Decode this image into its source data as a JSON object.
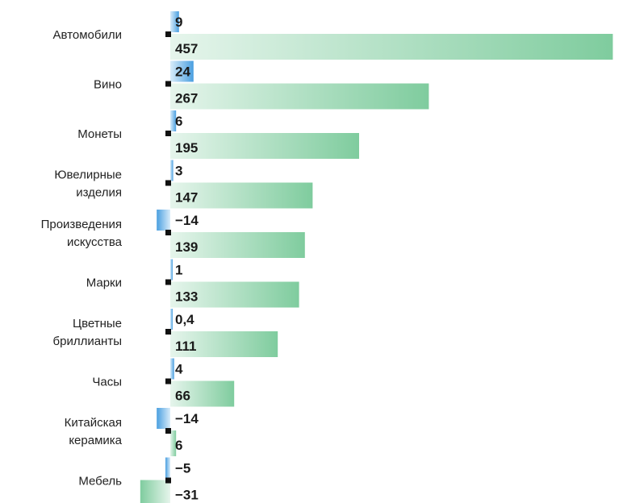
{
  "chart_data": {
    "type": "bar",
    "title": "",
    "xlabel": "",
    "ylabel": "",
    "categories": [
      "Автомобили",
      "Вино",
      "Монеты",
      "Ювелирные\nизделия",
      "Произведения\nискусства",
      "Марки",
      "Цветные\nбриллианты",
      "Часы",
      "Китайская\nкерамика",
      "Мебель"
    ],
    "series": [
      {
        "values": [
          9,
          24,
          6,
          3,
          -14,
          1,
          0.4,
          4,
          -14,
          -5
        ],
        "labels": [
          "9",
          "24",
          "6",
          "3",
          "−14",
          "1",
          "0,4",
          "4",
          "−14",
          "−5"
        ],
        "color": "#4a9fe0"
      },
      {
        "values": [
          457,
          267,
          195,
          147,
          139,
          133,
          111,
          66,
          6,
          -31
        ],
        "labels": [
          "457",
          "267",
          "195",
          "147",
          "139",
          "133",
          "111",
          "66",
          "6",
          "−31"
        ],
        "color": "#7fcc9e"
      }
    ],
    "xlim": [
      -31,
      457
    ],
    "grid": false,
    "legend": "none"
  },
  "colors": {
    "blue": "#4a9fe0",
    "blue_light": "#d8ecfa",
    "green": "#7fcc9e",
    "green_light": "#e6f5ec",
    "marker": "#111111"
  }
}
